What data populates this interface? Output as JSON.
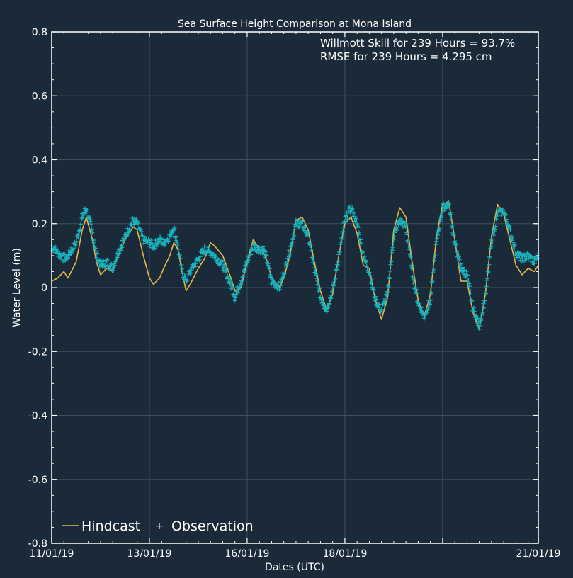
{
  "chart_data": {
    "type": "line",
    "title": "Sea Surface Height Comparison at Mona Island",
    "xlabel": "Dates (UTC)",
    "ylabel": "Water Level (m)",
    "ylim": [
      -0.8,
      0.8
    ],
    "yticks": [
      0.8,
      0.6,
      0.4,
      0.2,
      0,
      -0.2,
      -0.4,
      -0.6,
      -0.8
    ],
    "ytick_labels": [
      "0.8",
      "0.6",
      "0.4",
      "0.2",
      "0",
      "-0.2",
      "-0.4",
      "-0.6",
      "-0.8"
    ],
    "xlim": [
      0,
      239
    ],
    "xticks": [
      0,
      48,
      96,
      144,
      192,
      239
    ],
    "xtick_labels": [
      "11/01/19",
      "13/01/19",
      "16/01/19",
      "18/01/19",
      "21/01/19"
    ],
    "xtick_label_positions": [
      0,
      48,
      96,
      144,
      239
    ],
    "grid": true,
    "legend_position": "bottom-left",
    "annotations": [
      "Willmott Skill for 239 Hours = 93.7%",
      "RMSE for 239 Hours = 4.295 cm"
    ],
    "colors": {
      "background": "#1b2a38",
      "hindcast": "#e8b84a",
      "observation": "#19b3bd",
      "grid": "#3e5060",
      "text": "#ffffff"
    },
    "series": [
      {
        "name": "Hindcast",
        "style": "line",
        "x": [
          0,
          3,
          6,
          8,
          12,
          15,
          17,
          20,
          22,
          24,
          27,
          30,
          32,
          36,
          40,
          42,
          45,
          48,
          50,
          53,
          55,
          58,
          60,
          62,
          64,
          66,
          68,
          72,
          75,
          78,
          80,
          84,
          88,
          90,
          93,
          96,
          99,
          102,
          104,
          106,
          108,
          112,
          114,
          117,
          120,
          123,
          126,
          129,
          132,
          135,
          138,
          141,
          144,
          147,
          150,
          153,
          156,
          159,
          162,
          165,
          168,
          171,
          174,
          177,
          180,
          183,
          186,
          189,
          192,
          195,
          198,
          201,
          204,
          207,
          210,
          213,
          216,
          219,
          222,
          225,
          228,
          231,
          234,
          237,
          239
        ],
        "y": [
          0.02,
          0.03,
          0.05,
          0.03,
          0.08,
          0.18,
          0.22,
          0.15,
          0.08,
          0.04,
          0.06,
          0.05,
          0.09,
          0.15,
          0.19,
          0.18,
          0.1,
          0.03,
          0.01,
          0.03,
          0.06,
          0.1,
          0.14,
          0.12,
          0.05,
          -0.01,
          0.01,
          0.06,
          0.09,
          0.14,
          0.13,
          0.1,
          0.03,
          -0.01,
          0.0,
          0.08,
          0.15,
          0.12,
          0.11,
          0.08,
          0.03,
          0.0,
          0.03,
          0.1,
          0.21,
          0.22,
          0.18,
          0.08,
          -0.01,
          -0.07,
          -0.02,
          0.1,
          0.2,
          0.22,
          0.17,
          0.07,
          0.06,
          -0.04,
          -0.1,
          -0.03,
          0.18,
          0.25,
          0.22,
          0.08,
          -0.04,
          -0.09,
          -0.02,
          0.16,
          0.26,
          0.27,
          0.15,
          0.02,
          0.02,
          -0.08,
          -0.13,
          -0.02,
          0.16,
          0.26,
          0.23,
          0.15,
          0.07,
          0.04,
          0.06,
          0.05,
          0.07
        ]
      },
      {
        "name": "Observation",
        "style": "markers",
        "x": [
          0,
          3,
          6,
          8,
          12,
          15,
          17,
          20,
          22,
          24,
          27,
          30,
          32,
          36,
          40,
          42,
          45,
          48,
          50,
          53,
          55,
          58,
          60,
          62,
          64,
          66,
          68,
          72,
          75,
          78,
          80,
          84,
          88,
          90,
          93,
          96,
          99,
          102,
          104,
          106,
          108,
          112,
          114,
          117,
          120,
          123,
          126,
          129,
          132,
          135,
          138,
          141,
          144,
          147,
          150,
          153,
          156,
          159,
          162,
          165,
          168,
          171,
          174,
          177,
          180,
          183,
          186,
          189,
          192,
          195,
          198,
          201,
          204,
          207,
          210,
          213,
          216,
          219,
          222,
          225,
          228,
          231,
          234,
          237,
          239
        ],
        "y": [
          0.13,
          0.11,
          0.09,
          0.1,
          0.14,
          0.22,
          0.25,
          0.17,
          0.1,
          0.07,
          0.08,
          0.06,
          0.1,
          0.16,
          0.21,
          0.2,
          0.15,
          0.14,
          0.13,
          0.15,
          0.14,
          0.16,
          0.19,
          0.13,
          0.05,
          0.02,
          0.05,
          0.09,
          0.12,
          0.11,
          0.1,
          0.07,
          0.01,
          -0.03,
          0.02,
          0.08,
          0.13,
          0.12,
          0.12,
          0.08,
          0.02,
          0.0,
          0.05,
          0.12,
          0.2,
          0.2,
          0.16,
          0.06,
          -0.03,
          -0.07,
          -0.01,
          0.1,
          0.21,
          0.25,
          0.2,
          0.1,
          0.05,
          -0.04,
          -0.07,
          -0.02,
          0.16,
          0.21,
          0.19,
          0.05,
          -0.05,
          -0.09,
          -0.04,
          0.14,
          0.25,
          0.26,
          0.14,
          0.06,
          0.04,
          -0.07,
          -0.12,
          -0.03,
          0.14,
          0.23,
          0.24,
          0.18,
          0.11,
          0.09,
          0.1,
          0.08,
          0.1
        ]
      }
    ]
  }
}
